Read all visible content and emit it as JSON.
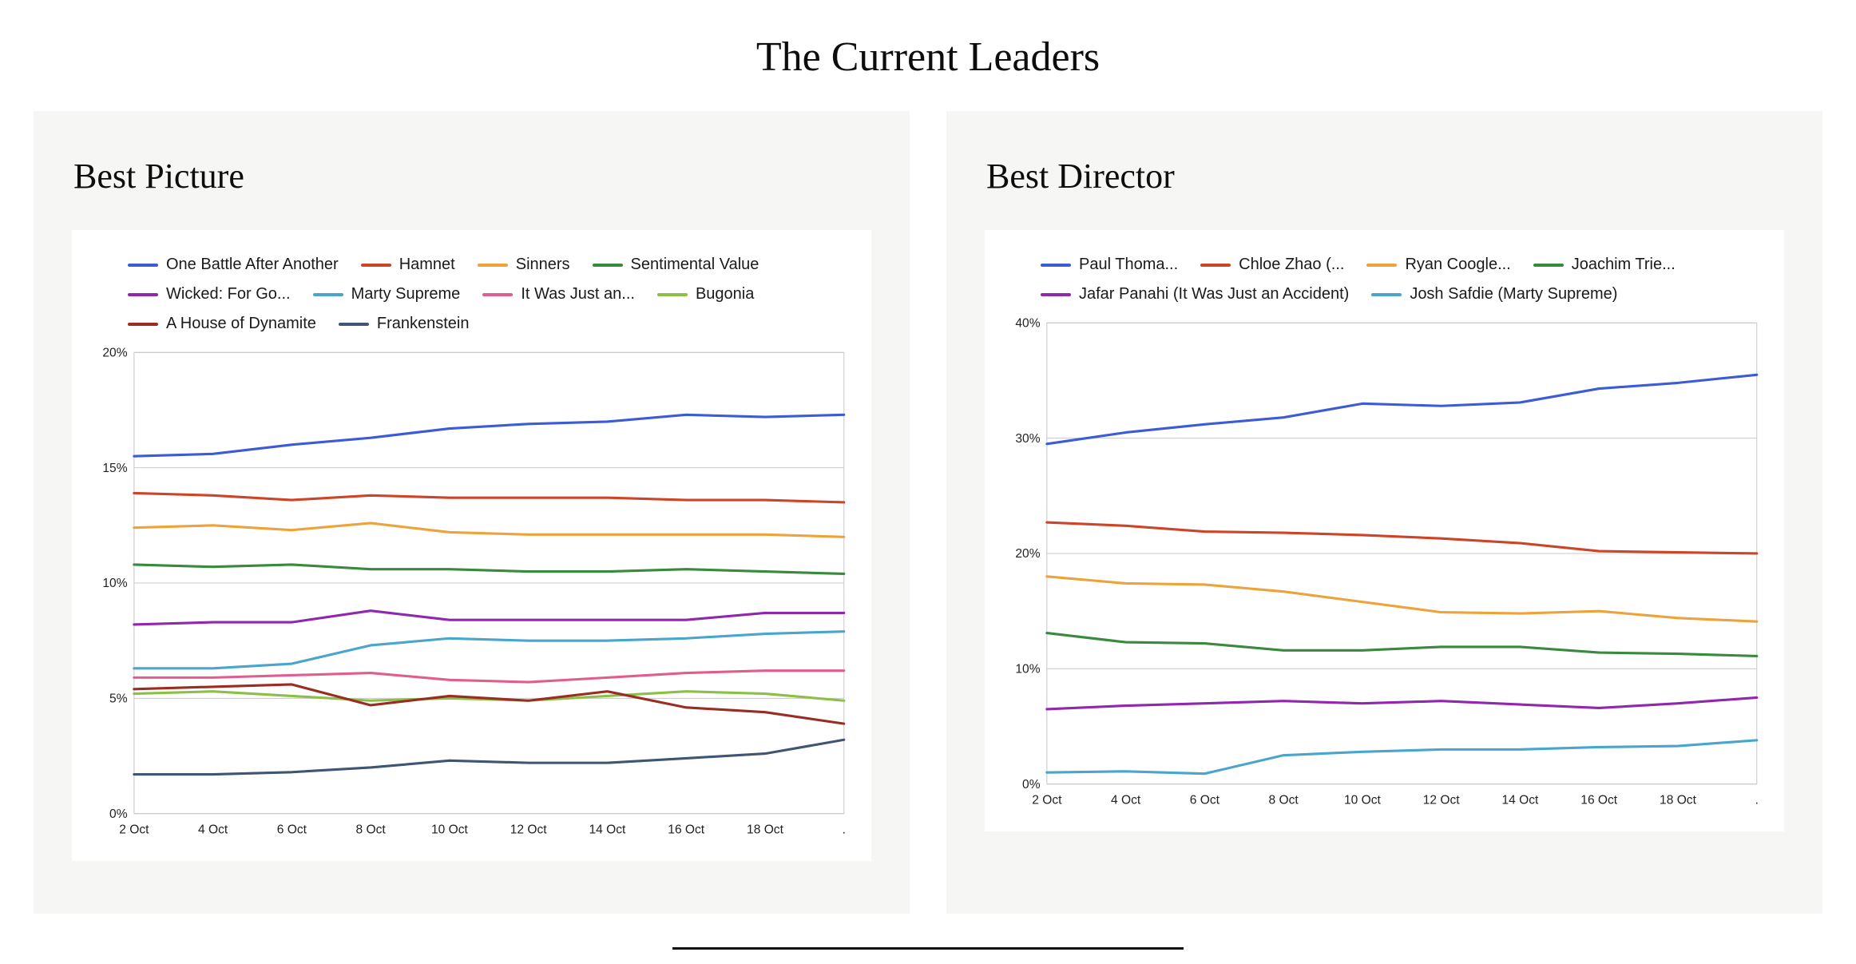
{
  "page": {
    "title": "The Current Leaders"
  },
  "panels": [
    {
      "heading": "Best Picture"
    },
    {
      "heading": "Best Director"
    }
  ],
  "chart_data": [
    {
      "type": "line",
      "title": "Best Picture",
      "x": [
        "2 Oct",
        "4 Oct",
        "6 Oct",
        "8 Oct",
        "10 Oct",
        "12 Oct",
        "14 Oct",
        "16 Oct",
        "18 Oct",
        "."
      ],
      "xlabel": "",
      "ylabel": "",
      "ylim": [
        0,
        20
      ],
      "yticks": [
        0,
        5,
        10,
        15,
        20
      ],
      "ytick_suffix": "%",
      "grid": true,
      "legend_position": "top",
      "series": [
        {
          "name": "One Battle After Another",
          "color": "#3c5cd7",
          "values": [
            15.5,
            15.6,
            16.0,
            16.3,
            16.7,
            16.9,
            17.0,
            17.3,
            17.2,
            17.3
          ]
        },
        {
          "name": "Hamnet",
          "color": "#cc4528",
          "values": [
            13.9,
            13.8,
            13.6,
            13.8,
            13.7,
            13.7,
            13.7,
            13.6,
            13.6,
            13.5
          ]
        },
        {
          "name": "Sinners",
          "color": "#eda33b",
          "values": [
            12.4,
            12.5,
            12.3,
            12.6,
            12.2,
            12.1,
            12.1,
            12.1,
            12.1,
            12.0
          ]
        },
        {
          "name": "Sentimental Value",
          "color": "#398a3c",
          "values": [
            10.8,
            10.7,
            10.8,
            10.6,
            10.6,
            10.5,
            10.5,
            10.6,
            10.5,
            10.4
          ]
        },
        {
          "name": "Wicked: For Go...",
          "color": "#9127ad",
          "values": [
            8.2,
            8.3,
            8.3,
            8.8,
            8.4,
            8.4,
            8.4,
            8.4,
            8.7,
            8.7
          ]
        },
        {
          "name": "Marty Supreme",
          "color": "#4aa5cd",
          "values": [
            6.3,
            6.3,
            6.5,
            7.3,
            7.6,
            7.5,
            7.5,
            7.6,
            7.8,
            7.9
          ]
        },
        {
          "name": "It Was Just an...",
          "color": "#e05e8e",
          "values": [
            5.9,
            5.9,
            6.0,
            6.1,
            5.8,
            5.7,
            5.9,
            6.1,
            6.2,
            6.2
          ]
        },
        {
          "name": "Bugonia",
          "color": "#8cbf45",
          "values": [
            5.2,
            5.3,
            5.1,
            4.9,
            5.0,
            4.9,
            5.1,
            5.3,
            5.2,
            4.9
          ]
        },
        {
          "name": "A House of Dynamite",
          "color": "#992d22",
          "values": [
            5.4,
            5.5,
            5.6,
            4.7,
            5.1,
            4.9,
            5.3,
            4.6,
            4.4,
            3.9
          ]
        },
        {
          "name": "Frankenstein",
          "color": "#3e5574",
          "values": [
            1.7,
            1.7,
            1.8,
            2.0,
            2.3,
            2.2,
            2.2,
            2.4,
            2.6,
            3.2
          ]
        }
      ]
    },
    {
      "type": "line",
      "title": "Best Director",
      "x": [
        "2 Oct",
        "4 Oct",
        "6 Oct",
        "8 Oct",
        "10 Oct",
        "12 Oct",
        "14 Oct",
        "16 Oct",
        "18 Oct",
        "."
      ],
      "xlabel": "",
      "ylabel": "",
      "ylim": [
        0,
        40
      ],
      "yticks": [
        0,
        10,
        20,
        30,
        40
      ],
      "ytick_suffix": "%",
      "grid": true,
      "legend_position": "top",
      "series": [
        {
          "name": "Paul Thoma...",
          "color": "#3c5cd7",
          "values": [
            29.5,
            30.5,
            31.2,
            31.8,
            33.0,
            32.8,
            33.1,
            34.3,
            34.8,
            35.5
          ]
        },
        {
          "name": "Chloe Zhao (...",
          "color": "#cc4528",
          "values": [
            22.7,
            22.4,
            21.9,
            21.8,
            21.6,
            21.3,
            20.9,
            20.2,
            20.1,
            20.0
          ]
        },
        {
          "name": "Ryan Coogle...",
          "color": "#eda33b",
          "values": [
            18.0,
            17.4,
            17.3,
            16.7,
            15.8,
            14.9,
            14.8,
            15.0,
            14.4,
            14.1
          ]
        },
        {
          "name": "Joachim Trie...",
          "color": "#398a3c",
          "values": [
            13.1,
            12.3,
            12.2,
            11.6,
            11.6,
            11.9,
            11.9,
            11.4,
            11.3,
            11.1
          ]
        },
        {
          "name": "Jafar Panahi (It Was Just an Accident)",
          "color": "#9127ad",
          "values": [
            6.5,
            6.8,
            7.0,
            7.2,
            7.0,
            7.2,
            6.9,
            6.6,
            7.0,
            7.5
          ]
        },
        {
          "name": "Josh Safdie (Marty Supreme)",
          "color": "#4aa5cd",
          "values": [
            1.0,
            1.1,
            0.9,
            2.5,
            2.8,
            3.0,
            3.0,
            3.2,
            3.3,
            3.8
          ]
        }
      ]
    }
  ],
  "footer": {
    "divider": true
  }
}
